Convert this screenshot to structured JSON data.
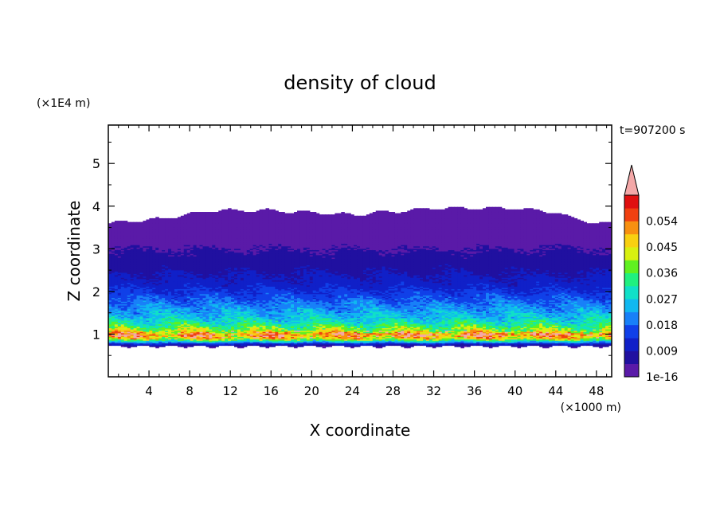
{
  "chart_data": {
    "type": "heatmap",
    "title": "density of cloud",
    "xlabel": "X coordinate",
    "ylabel": "Z coordinate",
    "x_unit": "(×1000 m)",
    "y_unit": "(×1E4 m)",
    "time_label": "t=907200 s",
    "xlim": [
      0,
      49.5
    ],
    "ylim": [
      0,
      5.9
    ],
    "x_ticks": [
      4,
      8,
      12,
      16,
      20,
      24,
      28,
      32,
      36,
      40,
      44,
      48
    ],
    "x_tick_labels": [
      "4",
      "8",
      "12",
      "16",
      "20",
      "24",
      "28",
      "32",
      "36",
      "40",
      "44",
      "48"
    ],
    "y_ticks": [
      1,
      2,
      3,
      4,
      5
    ],
    "y_tick_labels": [
      "1",
      "2",
      "3",
      "4",
      "5"
    ],
    "grid": false,
    "colorbar": {
      "labels": [
        "0.054",
        "0.045",
        "0.036",
        "0.027",
        "0.018",
        "0.009",
        "1e-16"
      ],
      "levels": [
        0.0,
        0.0045,
        0.009,
        0.0135,
        0.018,
        0.0225,
        0.027,
        0.0315,
        0.036,
        0.0405,
        0.045,
        0.0495,
        0.054,
        0.0585
      ],
      "colors": [
        "#5a1aa8",
        "#2010a0",
        "#1020c8",
        "#1040e8",
        "#1880f8",
        "#10b8f0",
        "#10e0c8",
        "#20f080",
        "#60f020",
        "#d8f010",
        "#f8d010",
        "#f89010",
        "#f04010",
        "#e01010"
      ],
      "overflow_color": "#f4a8a8"
    },
    "profile": {
      "z": [
        0.7,
        0.78,
        0.9,
        1.0,
        1.1,
        1.25,
        1.4,
        1.6,
        1.8,
        2.0,
        2.2,
        2.5,
        2.8,
        3.2,
        3.6,
        3.9
      ],
      "value": [
        0.003,
        0.012,
        0.045,
        0.054,
        0.04,
        0.032,
        0.026,
        0.022,
        0.018,
        0.014,
        0.011,
        0.008,
        0.006,
        0.003,
        0.0015,
        0.0008
      ]
    },
    "cloud_top": {
      "x": [
        0,
        5,
        10,
        16,
        24,
        32,
        40,
        44,
        46,
        48,
        49.5
      ],
      "z": [
        3.6,
        3.7,
        3.9,
        3.9,
        3.8,
        3.95,
        3.95,
        3.85,
        3.7,
        3.6,
        3.6
      ]
    },
    "cloud_base": 0.72
  }
}
